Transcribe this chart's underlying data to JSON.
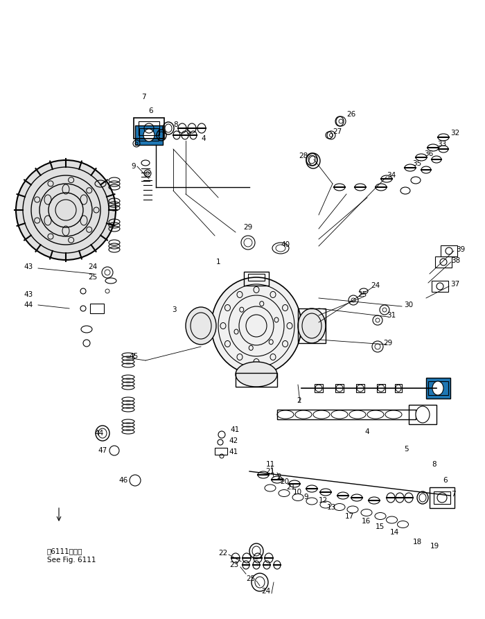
{
  "bg_color": "#ffffff",
  "line_color": "#000000",
  "fig_width": 7.0,
  "fig_height": 8.93,
  "dpi": 100,
  "annotation_fontsize": 7.5,
  "note_text_ja": "第6111図参照",
  "note_text_en": "See Fig. 6111"
}
